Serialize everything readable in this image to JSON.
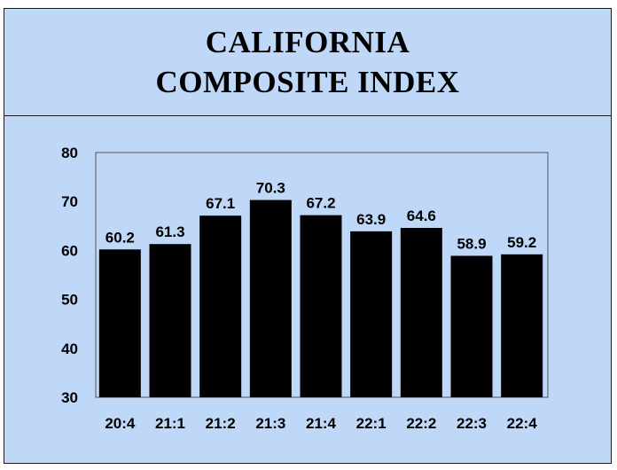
{
  "chart_data": {
    "type": "bar",
    "title_lines": [
      "CALIFORNIA",
      "COMPOSITE INDEX"
    ],
    "categories": [
      "20:4",
      "21:1",
      "21:2",
      "21:3",
      "21:4",
      "22:1",
      "22:2",
      "22:3",
      "22:4"
    ],
    "values": [
      60.2,
      61.3,
      67.1,
      70.3,
      67.2,
      63.9,
      64.6,
      58.9,
      59.2
    ],
    "data_labels": [
      "60.2",
      "61.3",
      "67.1",
      "70.3",
      "67.2",
      "63.9",
      "64.6",
      "58.9",
      "59.2"
    ],
    "ylim": [
      30,
      80
    ],
    "yticks": [
      30,
      40,
      50,
      60,
      70,
      80
    ],
    "xlabel": "",
    "ylabel": "",
    "grid": false,
    "bar_color": "#000000",
    "background_color": "#bfd8f7"
  }
}
